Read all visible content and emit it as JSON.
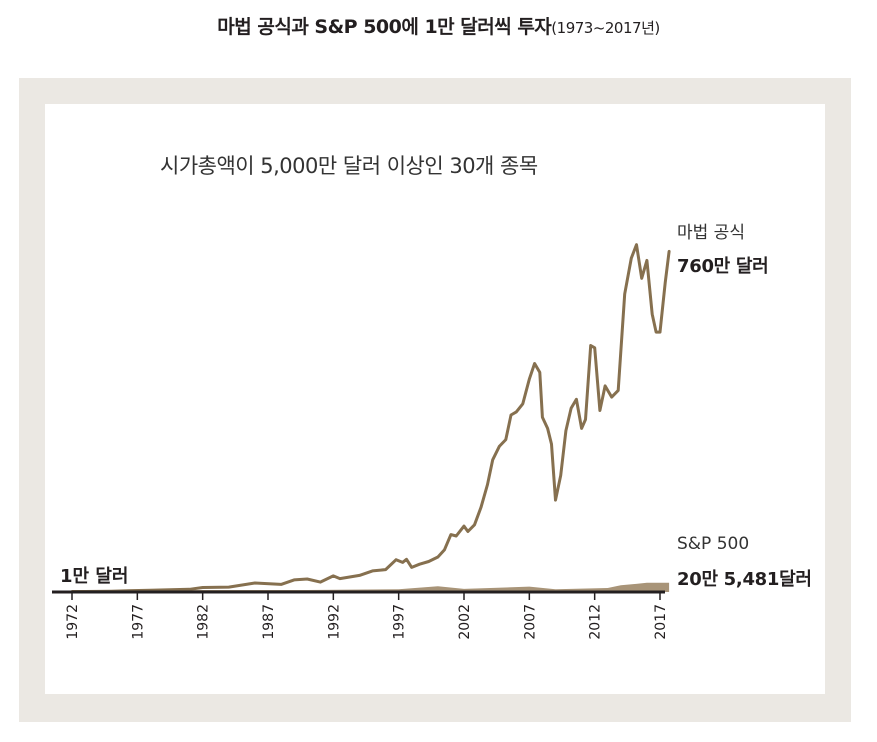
{
  "header": {
    "title": "마법 공식과 S&P 500에 1만 달러씩 투자",
    "title_years": "(1973~2017년)"
  },
  "chart": {
    "subtitle": "시가총액이 5,000만 달러 이상인 30개 종목",
    "start_label": "1만 달러"
  },
  "legend": {
    "magic_name": "마법 공식",
    "magic_value": "760만 달러",
    "sp_name": "S&P 500",
    "sp_value": "20만 5,481달러"
  },
  "colors": {
    "magic_line": "#86704f",
    "sp_fill": "#a89478",
    "axis": "#231f20",
    "frame": "#ebe8e3"
  },
  "chart_data": {
    "type": "area",
    "title": "마법 공식과 S&P 500에 1만 달러씩 투자(1973~2017년)",
    "subtitle": "시가총액이 5,000만 달러 이상인 30개 종목",
    "x_ticks": [
      "1972",
      "1977",
      "1982",
      "1987",
      "1992",
      "1997",
      "2002",
      "2007",
      "2012",
      "2017"
    ],
    "xlim": [
      1972,
      2017
    ],
    "ylim": [
      0,
      7900000
    ],
    "grid": false,
    "series": [
      {
        "name": "마법 공식",
        "style": "line",
        "end_label": "760만 달러",
        "points": [
          [
            1972,
            10000
          ],
          [
            1975,
            18000
          ],
          [
            1978,
            40000
          ],
          [
            1981,
            60000
          ],
          [
            1982,
            100000
          ],
          [
            1984,
            110000
          ],
          [
            1986,
            200000
          ],
          [
            1988,
            170000
          ],
          [
            1989,
            270000
          ],
          [
            1990,
            290000
          ],
          [
            1991,
            220000
          ],
          [
            1992,
            360000
          ],
          [
            1992.5,
            300000
          ],
          [
            1994,
            370000
          ],
          [
            1995,
            470000
          ],
          [
            1996,
            500000
          ],
          [
            1996.8,
            720000
          ],
          [
            1997.3,
            660000
          ],
          [
            1997.6,
            730000
          ],
          [
            1998,
            550000
          ],
          [
            1998.6,
            620000
          ],
          [
            1999.3,
            680000
          ],
          [
            2000,
            780000
          ],
          [
            2000.5,
            940000
          ],
          [
            2001,
            1280000
          ],
          [
            2001.4,
            1250000
          ],
          [
            2002,
            1470000
          ],
          [
            2002.3,
            1350000
          ],
          [
            2002.8,
            1500000
          ],
          [
            2003.3,
            1890000
          ],
          [
            2003.8,
            2400000
          ],
          [
            2004.2,
            2950000
          ],
          [
            2004.7,
            3250000
          ],
          [
            2005.2,
            3400000
          ],
          [
            2005.6,
            3950000
          ],
          [
            2006,
            4020000
          ],
          [
            2006.5,
            4200000
          ],
          [
            2007,
            4750000
          ],
          [
            2007.4,
            5100000
          ],
          [
            2007.8,
            4900000
          ],
          [
            2008,
            3900000
          ],
          [
            2008.4,
            3650000
          ],
          [
            2008.7,
            3300000
          ],
          [
            2009,
            2050000
          ],
          [
            2009.4,
            2600000
          ],
          [
            2009.8,
            3600000
          ],
          [
            2010.2,
            4100000
          ],
          [
            2010.6,
            4300000
          ],
          [
            2011,
            3650000
          ],
          [
            2011.3,
            3850000
          ],
          [
            2011.7,
            5500000
          ],
          [
            2012,
            5450000
          ],
          [
            2012.4,
            4050000
          ],
          [
            2012.8,
            4600000
          ],
          [
            2013.3,
            4350000
          ],
          [
            2013.8,
            4500000
          ],
          [
            2014.3,
            6650000
          ],
          [
            2014.8,
            7450000
          ],
          [
            2015.2,
            7750000
          ],
          [
            2015.6,
            7000000
          ],
          [
            2016,
            7400000
          ],
          [
            2016.4,
            6200000
          ],
          [
            2016.7,
            5800000
          ],
          [
            2017,
            5800000
          ],
          [
            2017.4,
            6900000
          ],
          [
            2017.7,
            7600000
          ]
        ]
      },
      {
        "name": "S&P 500",
        "style": "area",
        "end_label": "20만 5,481달러",
        "points": [
          [
            1972,
            10000
          ],
          [
            1980,
            20000
          ],
          [
            1990,
            40000
          ],
          [
            1997,
            60000
          ],
          [
            2000,
            130000
          ],
          [
            2002,
            70000
          ],
          [
            2007,
            120000
          ],
          [
            2009,
            60000
          ],
          [
            2013,
            90000
          ],
          [
            2014,
            150000
          ],
          [
            2016,
            205481
          ],
          [
            2017.7,
            205481
          ]
        ]
      }
    ]
  }
}
